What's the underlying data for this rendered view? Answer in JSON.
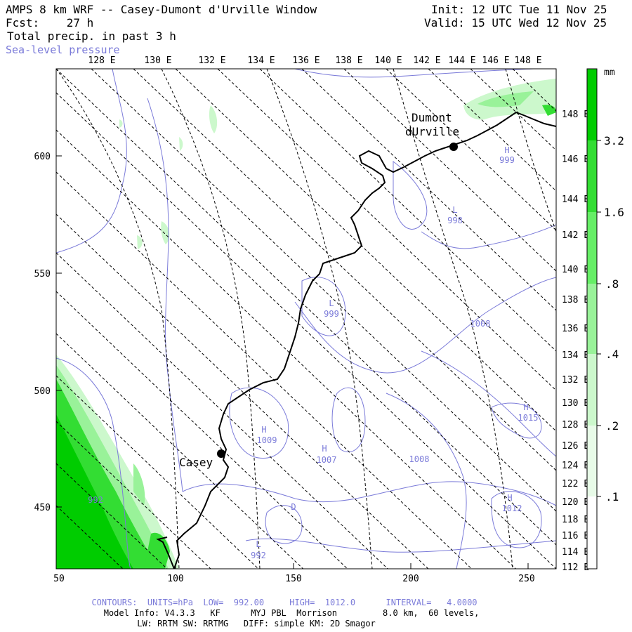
{
  "header": {
    "title": "AMPS 8 km WRF -- Casey-Dumont d'Urville Window",
    "forecast": "Fcst:    27 h",
    "field": "Total precip. in past 3 h",
    "overlay": "Sea-level pressure",
    "init": "Init: 12 UTC Tue 11 Nov 25",
    "valid": "Valid: 15 UTC Wed 12 Nov 25"
  },
  "top_longitudes": [
    "128 E",
    "130 E",
    "132 E",
    "134 E",
    "136 E",
    "138 E",
    "140 E",
    "142 E",
    "144 E",
    "146 E",
    "148 E"
  ],
  "right_latlabels": [
    "148 E",
    "146 E",
    "144 E",
    "142 E",
    "140 E",
    "138 E",
    "136 E",
    "134 E",
    "132 E",
    "130 E",
    "128 E",
    "126 E",
    "124 E",
    "122 E",
    "120 E",
    "118 E",
    "116 E",
    "114 E",
    "112 E"
  ],
  "left_axis": [
    "600",
    "550",
    "500",
    "450"
  ],
  "bottom_axis": [
    "50",
    "100",
    "150",
    "200",
    "250"
  ],
  "stations": [
    {
      "name": "Casey"
    },
    {
      "name": "Dumont dUrville",
      "line1": "Dumont",
      "line2": "dUrville"
    }
  ],
  "pressure_centers": [
    {
      "type": "H",
      "value": "999"
    },
    {
      "type": "L",
      "value": "998"
    },
    {
      "type": "L",
      "value": "999"
    },
    {
      "type": "",
      "value": "1008"
    },
    {
      "type": "H",
      "value": "1009"
    },
    {
      "type": "H",
      "value": "1007"
    },
    {
      "type": "",
      "value": "1008"
    },
    {
      "type": "H",
      "value": "1015"
    },
    {
      "type": "H",
      "value": "1012"
    },
    {
      "type": "L",
      "value": "992"
    },
    {
      "type": "D",
      "value": ""
    },
    {
      "type": "",
      "value": "992"
    }
  ],
  "legend": {
    "unit": "mm",
    "labels": [
      "3.2",
      "1.6",
      ".8",
      ".4",
      ".2",
      ".1"
    ],
    "colors": [
      "#00cc00",
      "#33dd33",
      "#66ee66",
      "#99f299",
      "#ccf8cc",
      "#ffffff"
    ]
  },
  "footer": {
    "contours": "CONTOURS:  UNITS=hPa  LOW=  992.00     HIGH=  1012.0      INTERVAL=   4.0000",
    "model_info": "Model Info: V4.3.3   KF      MYJ PBL  Morrison         8.0 km,  60 levels,",
    "physics": "LW: RRTM SW: RRTMG   DIFF: simple KM: 2D Smagor"
  }
}
